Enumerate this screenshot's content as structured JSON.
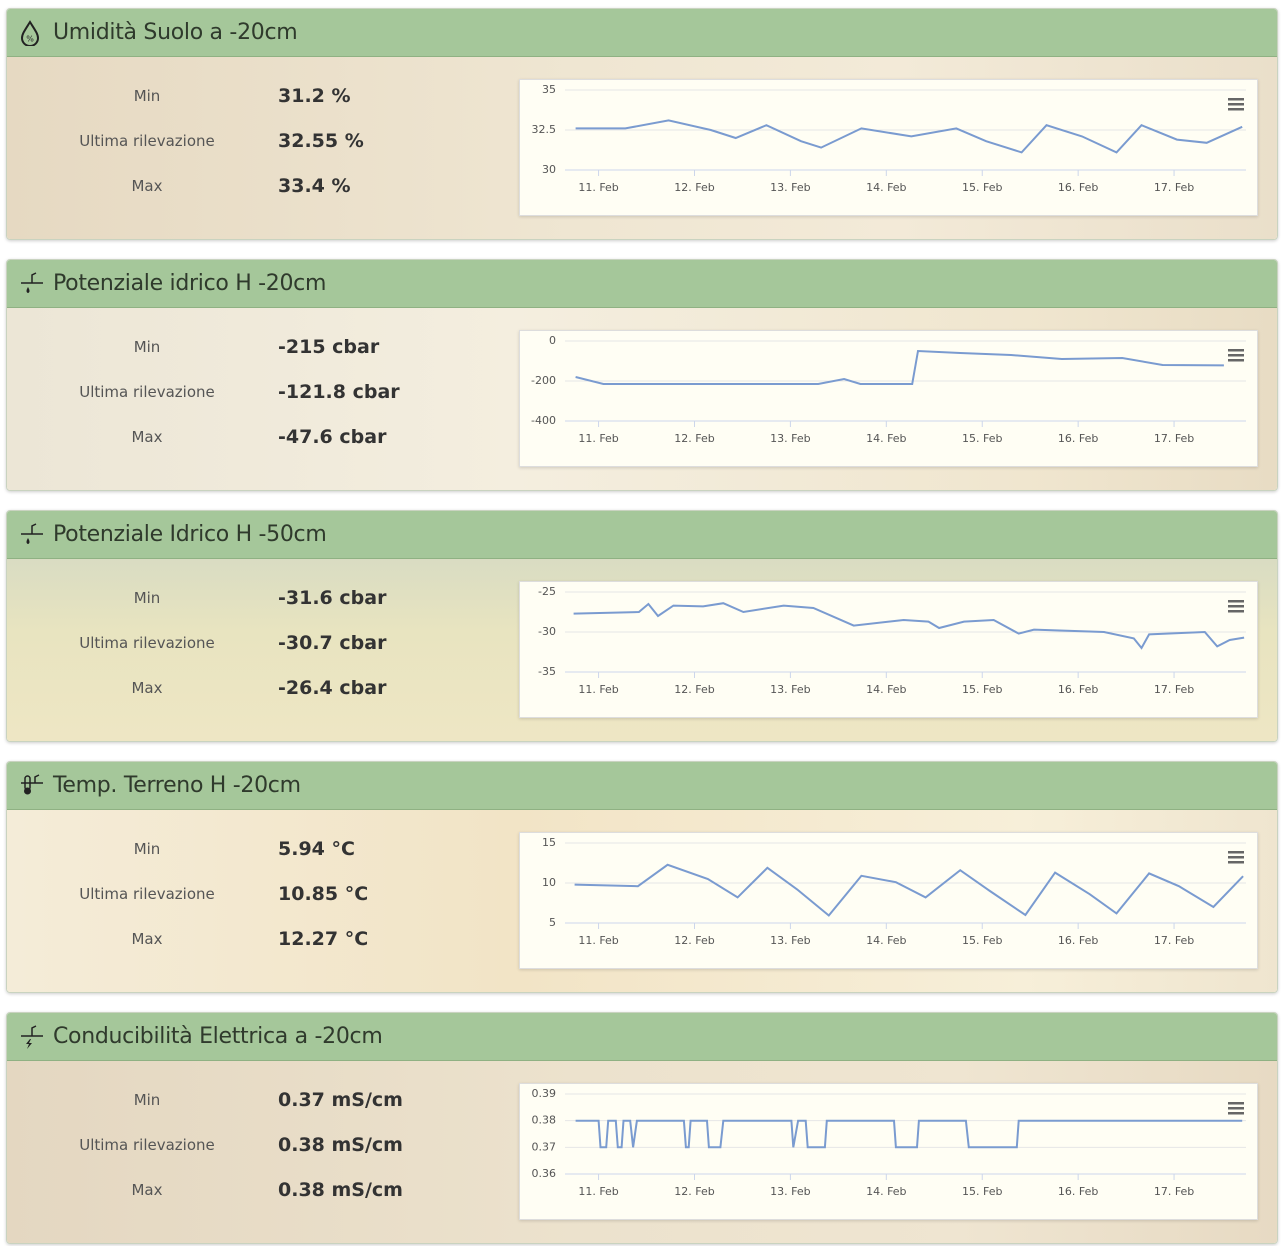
{
  "panels": [
    {
      "title": "Umidità Suolo a -20cm",
      "stats": [
        {
          "label": "Min",
          "value": "31.2 %"
        },
        {
          "label": "Ultima rilevazione",
          "value": "32.55 %"
        },
        {
          "label": "Max",
          "value": "33.4 %"
        }
      ],
      "chart": {
        "type": "line",
        "color": "#7a9bd0",
        "grid": true,
        "xlim": [
          10.65,
          17.75
        ],
        "xticks": [
          {
            "value": 11,
            "label": "11. Feb"
          },
          {
            "value": 12,
            "label": "12. Feb"
          },
          {
            "value": 13,
            "label": "13. Feb"
          },
          {
            "value": 14,
            "label": "14. Feb"
          },
          {
            "value": 15,
            "label": "15. Feb"
          },
          {
            "value": 16,
            "label": "16. Feb"
          },
          {
            "value": 17,
            "label": "17. Feb"
          }
        ],
        "ylim": [
          30,
          35
        ],
        "yticks": [
          30,
          32.5,
          35
        ],
        "x": [
          10.76,
          11.28,
          11.73,
          12.17,
          12.43,
          12.75,
          13.11,
          13.32,
          13.74,
          14.26,
          14.73,
          15.04,
          15.41,
          15.67,
          16.04,
          16.4,
          16.66,
          17.03,
          17.34,
          17.71
        ],
        "values": [
          32.6,
          32.6,
          33.1,
          32.5,
          32.0,
          32.8,
          31.8,
          31.4,
          32.6,
          32.1,
          32.6,
          31.8,
          31.1,
          32.8,
          32.1,
          31.1,
          32.8,
          31.9,
          31.7,
          32.7
        ]
      }
    },
    {
      "title": "Potenziale idrico H -20cm",
      "stats": [
        {
          "label": "Min",
          "value": "-215 cbar"
        },
        {
          "label": "Ultima rilevazione",
          "value": "-121.8 cbar"
        },
        {
          "label": "Max",
          "value": "-47.6 cbar"
        }
      ],
      "chart": {
        "type": "line",
        "color": "#7a9bd0",
        "grid": true,
        "xlim": [
          10.65,
          17.75
        ],
        "xticks": [
          {
            "value": 11,
            "label": "11. Feb"
          },
          {
            "value": 12,
            "label": "12. Feb"
          },
          {
            "value": 13,
            "label": "13. Feb"
          },
          {
            "value": 14,
            "label": "14. Feb"
          },
          {
            "value": 15,
            "label": "15. Feb"
          },
          {
            "value": 16,
            "label": "16. Feb"
          },
          {
            "value": 17,
            "label": "17. Feb"
          }
        ],
        "ylim": [
          -400,
          0
        ],
        "yticks": [
          -400,
          -200,
          0
        ],
        "x": [
          10.76,
          11.05,
          13.29,
          13.56,
          13.73,
          14.27,
          14.33,
          14.77,
          15.3,
          15.83,
          16.46,
          16.88,
          17.52
        ],
        "values": [
          -180,
          -215,
          -215,
          -190,
          -215,
          -215,
          -50,
          -60,
          -70,
          -90,
          -85,
          -120,
          -122
        ]
      }
    },
    {
      "title": "Potenziale Idrico H -50cm",
      "stats": [
        {
          "label": "Min",
          "value": "-31.6 cbar"
        },
        {
          "label": "Ultima rilevazione",
          "value": "-30.7 cbar"
        },
        {
          "label": "Max",
          "value": "-26.4 cbar"
        }
      ],
      "chart": {
        "type": "line",
        "color": "#7a9bd0",
        "grid": true,
        "xlim": [
          10.65,
          17.75
        ],
        "xticks": [
          {
            "value": 11,
            "label": "11. Feb"
          },
          {
            "value": 12,
            "label": "12. Feb"
          },
          {
            "value": 13,
            "label": "13. Feb"
          },
          {
            "value": 14,
            "label": "14. Feb"
          },
          {
            "value": 15,
            "label": "15. Feb"
          },
          {
            "value": 16,
            "label": "16. Feb"
          },
          {
            "value": 17,
            "label": "17. Feb"
          }
        ],
        "ylim": [
          -35,
          -25
        ],
        "yticks": [
          -35,
          -30,
          -25
        ],
        "x": [
          10.74,
          11.42,
          11.52,
          11.62,
          11.78,
          12.09,
          12.3,
          12.51,
          12.93,
          13.24,
          13.66,
          14.18,
          14.44,
          14.55,
          14.81,
          15.12,
          15.38,
          15.54,
          16.27,
          16.58,
          16.66,
          16.74,
          17.32,
          17.45,
          17.58,
          17.73
        ],
        "values": [
          -27.7,
          -27.5,
          -26.5,
          -28.0,
          -26.7,
          -26.8,
          -26.4,
          -27.5,
          -26.7,
          -27.0,
          -29.2,
          -28.5,
          -28.7,
          -29.5,
          -28.7,
          -28.5,
          -30.2,
          -29.7,
          -30.0,
          -30.8,
          -32.0,
          -30.3,
          -30.0,
          -31.8,
          -31.0,
          -30.7
        ]
      }
    },
    {
      "title": "Temp. Terreno H -20cm",
      "stats": [
        {
          "label": "Min",
          "value": "5.94 °C"
        },
        {
          "label": "Ultima rilevazione",
          "value": "10.85 °C"
        },
        {
          "label": "Max",
          "value": "12.27 °C"
        }
      ],
      "chart": {
        "type": "line",
        "color": "#7a9bd0",
        "grid": true,
        "xlim": [
          10.65,
          17.75
        ],
        "xticks": [
          {
            "value": 11,
            "label": "11. Feb"
          },
          {
            "value": 12,
            "label": "12. Feb"
          },
          {
            "value": 13,
            "label": "13. Feb"
          },
          {
            "value": 14,
            "label": "14. Feb"
          },
          {
            "value": 15,
            "label": "15. Feb"
          },
          {
            "value": 16,
            "label": "16. Feb"
          },
          {
            "value": 17,
            "label": "17. Feb"
          }
        ],
        "ylim": [
          5,
          15
        ],
        "yticks": [
          5,
          10,
          15
        ],
        "x": [
          10.75,
          11.41,
          11.72,
          12.14,
          12.45,
          12.76,
          13.07,
          13.4,
          13.74,
          14.1,
          14.41,
          14.77,
          15.08,
          15.45,
          15.76,
          16.12,
          16.4,
          16.74,
          17.05,
          17.41,
          17.72
        ],
        "values": [
          9.8,
          9.6,
          12.27,
          10.5,
          8.2,
          11.9,
          9.2,
          5.94,
          10.9,
          10.1,
          8.2,
          11.6,
          9.0,
          6.0,
          11.3,
          8.6,
          6.2,
          11.2,
          9.6,
          7.0,
          10.85
        ]
      }
    },
    {
      "title": "Conducibilità Elettrica a -20cm",
      "stats": [
        {
          "label": "Min",
          "value": "0.37 mS/cm"
        },
        {
          "label": "Ultima rilevazione",
          "value": "0.38 mS/cm"
        },
        {
          "label": "Max",
          "value": "0.38 mS/cm"
        }
      ],
      "chart": {
        "type": "line",
        "color": "#7a9bd0",
        "grid": true,
        "xlim": [
          10.65,
          17.75
        ],
        "xticks": [
          {
            "value": 11,
            "label": "11. Feb"
          },
          {
            "value": 12,
            "label": "12. Feb"
          },
          {
            "value": 13,
            "label": "13. Feb"
          },
          {
            "value": 14,
            "label": "14. Feb"
          },
          {
            "value": 15,
            "label": "15. Feb"
          },
          {
            "value": 16,
            "label": "16. Feb"
          },
          {
            "value": 17,
            "label": "17. Feb"
          }
        ],
        "ylim": [
          0.36,
          0.39
        ],
        "yticks": [
          0.36,
          0.37,
          0.38,
          0.39
        ],
        "x": [
          10.76,
          11.0,
          11.02,
          11.08,
          11.1,
          11.18,
          11.2,
          11.24,
          11.26,
          11.33,
          11.36,
          11.4,
          11.89,
          11.91,
          11.94,
          11.96,
          12.13,
          12.15,
          12.27,
          12.3,
          13.01,
          13.03,
          13.08,
          13.16,
          13.18,
          13.36,
          13.38,
          14.08,
          14.1,
          14.32,
          14.34,
          14.83,
          14.86,
          15.36,
          15.38,
          17.71
        ],
        "values": [
          0.38,
          0.38,
          0.37,
          0.37,
          0.38,
          0.38,
          0.37,
          0.37,
          0.38,
          0.38,
          0.37,
          0.38,
          0.38,
          0.37,
          0.37,
          0.38,
          0.38,
          0.37,
          0.37,
          0.38,
          0.38,
          0.37,
          0.38,
          0.38,
          0.37,
          0.37,
          0.38,
          0.38,
          0.37,
          0.37,
          0.38,
          0.38,
          0.37,
          0.37,
          0.38,
          0.38
        ]
      }
    }
  ]
}
